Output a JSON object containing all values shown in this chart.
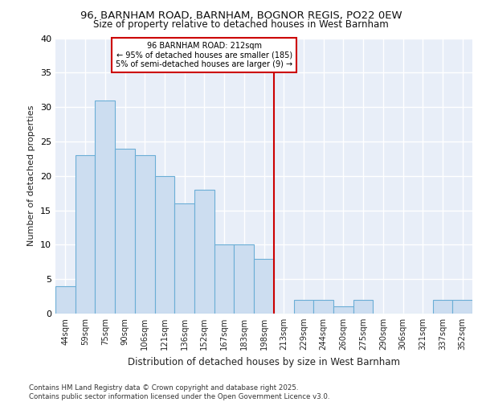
{
  "title1": "96, BARNHAM ROAD, BARNHAM, BOGNOR REGIS, PO22 0EW",
  "title2": "Size of property relative to detached houses in West Barnham",
  "xlabel": "Distribution of detached houses by size in West Barnham",
  "ylabel": "Number of detached properties",
  "bar_labels": [
    "44sqm",
    "59sqm",
    "75sqm",
    "90sqm",
    "106sqm",
    "121sqm",
    "136sqm",
    "152sqm",
    "167sqm",
    "183sqm",
    "198sqm",
    "213sqm",
    "229sqm",
    "244sqm",
    "260sqm",
    "275sqm",
    "290sqm",
    "306sqm",
    "321sqm",
    "337sqm",
    "352sqm"
  ],
  "bar_values": [
    4,
    23,
    31,
    24,
    23,
    20,
    16,
    18,
    10,
    10,
    8,
    0,
    2,
    2,
    1,
    2,
    0,
    0,
    0,
    2,
    2
  ],
  "bar_color": "#ccddf0",
  "bar_edge_color": "#6baed6",
  "vline_x": 11.0,
  "vline_color": "#cc0000",
  "annotation_title": "96 BARNHAM ROAD: 212sqm",
  "annotation_line1": "← 95% of detached houses are smaller (185)",
  "annotation_line2": "5% of semi-detached houses are larger (9) →",
  "ylim": [
    0,
    40
  ],
  "yticks": [
    0,
    5,
    10,
    15,
    20,
    25,
    30,
    35,
    40
  ],
  "footer1": "Contains HM Land Registry data © Crown copyright and database right 2025.",
  "footer2": "Contains public sector information licensed under the Open Government Licence v3.0.",
  "bg_color": "#e8eef8"
}
